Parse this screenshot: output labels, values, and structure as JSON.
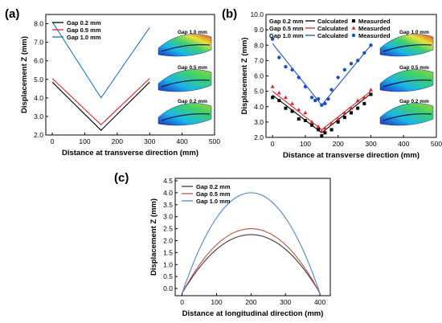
{
  "chart_data": [
    {
      "panel": "(a)",
      "type": "line",
      "xlabel": "Distance at transverse direction (mm)",
      "ylabel": "Displacement Z (mm)",
      "xlim": [
        -20,
        500
      ],
      "ylim": [
        2.0,
        8.5
      ],
      "xticks": [
        "0",
        "100",
        "200",
        "300",
        "400",
        "500"
      ],
      "yticks": [
        "2.0",
        "3.0",
        "4.0",
        "5.0",
        "6.0",
        "7.0",
        "8.0"
      ],
      "grid": false,
      "legend_position": "top-left",
      "series": [
        {
          "name": "Gap 0.2 mm",
          "color": "#000000",
          "x": [
            0,
            150,
            300
          ],
          "y": [
            4.85,
            2.25,
            4.85
          ]
        },
        {
          "name": "Gap 0.5 mm",
          "color": "#d62728",
          "x": [
            0,
            150,
            300
          ],
          "y": [
            5.05,
            2.55,
            5.05
          ]
        },
        {
          "name": "Gap 1.0 mm",
          "color": "#1f77b4",
          "x": [
            0,
            150,
            300
          ],
          "y": [
            8.1,
            4.0,
            7.8
          ]
        }
      ],
      "insets": [
        "Gap 1.0 mm",
        "Gap 0.5 mm",
        "Gap 0.2 mm"
      ]
    },
    {
      "panel": "(b)",
      "type": "line",
      "xlabel": "Distance at transverse direction (mm)",
      "ylabel": "Displacement Z (mm)",
      "xlim": [
        -20,
        500
      ],
      "ylim": [
        2.0,
        10.0
      ],
      "xticks": [
        "0",
        "100",
        "200",
        "300",
        "400",
        "500"
      ],
      "yticks": [
        "2.0",
        "3.0",
        "4.0",
        "5.0",
        "6.0",
        "7.0",
        "8.0",
        "9.0",
        "10.0"
      ],
      "grid": false,
      "legend_position": "top-left",
      "series": [
        {
          "name": "Gap 0.2 mm Calculated",
          "color": "#000000",
          "kind": "line",
          "x": [
            0,
            150,
            300
          ],
          "y": [
            4.75,
            2.3,
            4.85
          ]
        },
        {
          "name": "Gap 0.5 mm Calculated",
          "color": "#d62728",
          "kind": "line",
          "x": [
            0,
            150,
            300
          ],
          "y": [
            5.0,
            2.5,
            5.0
          ]
        },
        {
          "name": "Gap 1.0 mm Calculated",
          "color": "#1f4fc4",
          "kind": "line",
          "x": [
            0,
            150,
            300
          ],
          "y": [
            8.1,
            4.1,
            8.0
          ]
        },
        {
          "name": "Gap 0.2 mm Measured",
          "color": "#000000",
          "kind": "marker",
          "marker": "square",
          "x": [
            0,
            20,
            40,
            60,
            80,
            100,
            120,
            140,
            150,
            160,
            180,
            200,
            220,
            240,
            260,
            280,
            300
          ],
          "y": [
            4.6,
            4.4,
            3.9,
            3.7,
            3.2,
            3.1,
            2.8,
            2.5,
            2.1,
            2.3,
            2.5,
            3.0,
            3.3,
            3.6,
            3.9,
            4.2,
            4.8
          ]
        },
        {
          "name": "Gap 0.5 mm Measured",
          "color": "#d62728",
          "kind": "marker",
          "marker": "triangle",
          "x": [
            0,
            20,
            40,
            60,
            80,
            100,
            120,
            140,
            150,
            160,
            180,
            200,
            220,
            240,
            260,
            280,
            300
          ],
          "y": [
            5.3,
            4.9,
            4.6,
            4.2,
            3.8,
            3.6,
            3.0,
            2.7,
            2.4,
            2.6,
            2.9,
            3.2,
            3.6,
            3.9,
            4.4,
            4.6,
            5.1
          ]
        },
        {
          "name": "Gap 1.0 mm Measured",
          "color": "#1f4fc4",
          "kind": "marker",
          "marker": "circle",
          "x": [
            0,
            20,
            40,
            60,
            80,
            100,
            120,
            130,
            140,
            150,
            160,
            170,
            180,
            200,
            220,
            240,
            260,
            280,
            300
          ],
          "y": [
            8.4,
            7.2,
            6.6,
            6.4,
            5.9,
            5.3,
            4.6,
            4.4,
            4.5,
            4.1,
            4.2,
            4.5,
            5.1,
            5.9,
            6.4,
            6.8,
            7.0,
            7.5,
            8.0
          ]
        }
      ],
      "legend": {
        "rows": [
          {
            "gap": "Gap 0.2 mm",
            "calc": "Calculated",
            "meas": "Measurded"
          },
          {
            "gap": "Gap 0.5 mm",
            "calc": "Calculated",
            "meas": "Measurded"
          },
          {
            "gap": "Gap 1.0 mm",
            "calc": "Calculated",
            "meas": "Measurded"
          }
        ]
      },
      "insets": [
        "Gap 1.0 mm",
        "Gap 0.5 mm",
        "Gap 0.2 mm"
      ]
    },
    {
      "panel": "(c)",
      "type": "line",
      "xlabel": "Distance at longitudinal direction (mm)",
      "ylabel": "Displacement Z (mm)",
      "xlim": [
        -20,
        430
      ],
      "ylim": [
        -0.3,
        4.6
      ],
      "xticks": [
        "0",
        "100",
        "200",
        "300",
        "400"
      ],
      "yticks": [
        "0.0",
        "0.5",
        "1.0",
        "1.5",
        "2.0",
        "2.5",
        "3.0",
        "3.5",
        "4.0",
        "4.5"
      ],
      "grid": false,
      "legend_position": "top-left",
      "series": [
        {
          "name": "Gap 0.2 mm",
          "color": "#4a3440",
          "shape": "parabola",
          "x0": 0,
          "x1": 400,
          "base": -0.2,
          "peak": 2.25
        },
        {
          "name": "Gap 0.5 mm",
          "color": "#b5574f",
          "shape": "parabola",
          "x0": 0,
          "x1": 400,
          "base": -0.2,
          "peak": 2.5
        },
        {
          "name": "Gap 1.0 mm",
          "color": "#4f86c6",
          "shape": "parabola",
          "x0": 0,
          "x1": 400,
          "base": -0.2,
          "peak": 4.0
        }
      ]
    }
  ],
  "panel_labels": [
    "(a)",
    "(b)",
    "(c)"
  ]
}
